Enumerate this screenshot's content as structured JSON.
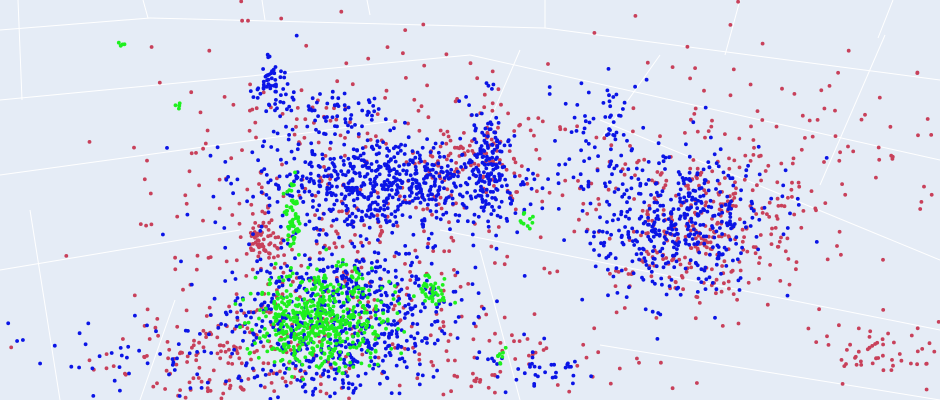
{
  "chart_data": {
    "type": "scatter",
    "scatter_type": "3d-point-cloud",
    "title": "",
    "grid": true,
    "colors": {
      "background": "#e5ecf6",
      "grid": "#ffffff",
      "red": "#c8405a",
      "blue": "#0a14e6",
      "green": "#1ef01e"
    },
    "series": [
      {
        "color": "#c8405a",
        "clusters": [
          {
            "cx": 0.36,
            "cy": 0.58,
            "sx": 0.1,
            "sy": 0.25,
            "n": 420
          },
          {
            "cx": 0.75,
            "cy": 0.57,
            "sx": 0.06,
            "sy": 0.1,
            "n": 300
          },
          {
            "cx": 0.23,
            "cy": 0.89,
            "sx": 0.06,
            "sy": 0.08,
            "n": 160
          },
          {
            "cx": 0.51,
            "cy": 0.38,
            "sx": 0.04,
            "sy": 0.06,
            "n": 120
          },
          {
            "cx": 0.84,
            "cy": 0.35,
            "sx": 0.12,
            "sy": 0.11,
            "n": 120
          },
          {
            "cx": 0.28,
            "cy": 0.6,
            "sx": 0.01,
            "sy": 0.03,
            "n": 60
          },
          {
            "cx": 0.94,
            "cy": 0.87,
            "sx": 0.04,
            "sy": 0.04,
            "n": 60
          },
          {
            "cx": 0.54,
            "cy": 0.88,
            "sx": 0.12,
            "sy": 0.08,
            "n": 80
          }
        ]
      },
      {
        "color": "#0a14e6",
        "clusters": [
          {
            "cx": 0.41,
            "cy": 0.46,
            "sx": 0.07,
            "sy": 0.06,
            "n": 650
          },
          {
            "cx": 0.36,
            "cy": 0.8,
            "sx": 0.06,
            "sy": 0.11,
            "n": 650
          },
          {
            "cx": 0.72,
            "cy": 0.55,
            "sx": 0.05,
            "sy": 0.09,
            "n": 450
          },
          {
            "cx": 0.52,
            "cy": 0.4,
            "sx": 0.01,
            "sy": 0.08,
            "n": 120
          },
          {
            "cx": 0.29,
            "cy": 0.21,
            "sx": 0.01,
            "sy": 0.04,
            "n": 60
          },
          {
            "cx": 0.36,
            "cy": 0.28,
            "sx": 0.03,
            "sy": 0.03,
            "n": 60
          },
          {
            "cx": 0.64,
            "cy": 0.3,
            "sx": 0.02,
            "sy": 0.07,
            "n": 50
          },
          {
            "cx": 0.57,
            "cy": 0.92,
            "sx": 0.03,
            "sy": 0.03,
            "n": 40
          },
          {
            "cx": 0.17,
            "cy": 0.88,
            "sx": 0.08,
            "sy": 0.07,
            "n": 60
          }
        ]
      },
      {
        "color": "#1ef01e",
        "clusters": [
          {
            "cx": 0.34,
            "cy": 0.8,
            "sx": 0.035,
            "sy": 0.06,
            "n": 520
          },
          {
            "cx": 0.31,
            "cy": 0.54,
            "sx": 0.004,
            "sy": 0.05,
            "n": 60
          },
          {
            "cx": 0.46,
            "cy": 0.73,
            "sx": 0.01,
            "sy": 0.02,
            "n": 40
          },
          {
            "cx": 0.56,
            "cy": 0.55,
            "sx": 0.005,
            "sy": 0.01,
            "n": 10
          },
          {
            "cx": 0.13,
            "cy": 0.11,
            "sx": 0.003,
            "sy": 0.005,
            "n": 4
          },
          {
            "cx": 0.19,
            "cy": 0.27,
            "sx": 0.003,
            "sy": 0.005,
            "n": 4
          },
          {
            "cx": 0.53,
            "cy": 0.89,
            "sx": 0.004,
            "sy": 0.02,
            "n": 8
          }
        ]
      }
    ]
  }
}
